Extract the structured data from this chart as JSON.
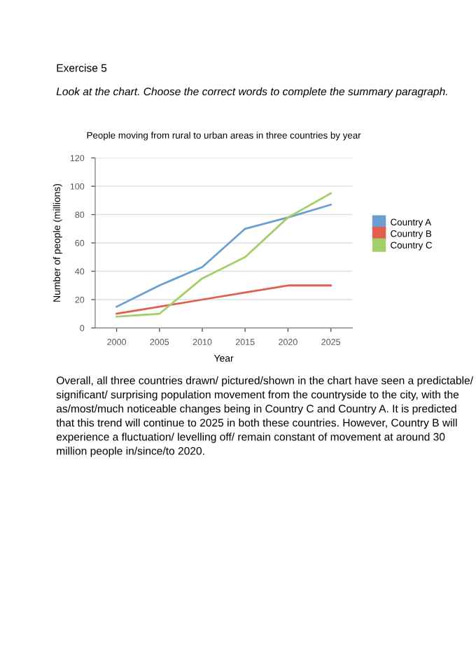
{
  "chart_data": {
    "type": "line",
    "title": "People moving from rural to urban areas in three countries by year",
    "xlabel": "Year",
    "ylabel": "Number of people (millions)",
    "x": [
      2000,
      2005,
      2010,
      2015,
      2020,
      2025
    ],
    "series": [
      {
        "name": "Country A",
        "color": "#6a9fd0",
        "values": [
          15,
          30,
          43,
          70,
          78,
          87
        ]
      },
      {
        "name": "Country B",
        "color": "#e0604f",
        "values": [
          10,
          15,
          20,
          25,
          30,
          30
        ]
      },
      {
        "name": "Country C",
        "color": "#a3cf6a",
        "values": [
          8,
          10,
          35,
          50,
          78,
          95
        ]
      }
    ],
    "xlim": [
      1997.5,
      2027.5
    ],
    "xticks": [
      2000,
      2005,
      2010,
      2015,
      2020,
      2025
    ],
    "ylim": [
      0,
      120
    ],
    "yticks": [
      0,
      20,
      40,
      60,
      80,
      100,
      120
    ],
    "grid": "y",
    "legend": "right",
    "marker": "none",
    "line_style": "solid",
    "annotations": [
      "Exercise 5",
      "Look at the chart. Choose the correct words to complete the summary paragraph.",
      "Overall, all three countries drawn/ pictured/shown in the chart have seen a predictable/ significant/ surprising population movement from the countryside to the city, with the as/most/much noticeable changes being in Country C and Country A. It is predicted that this trend will continue to 2025 in both these countries. However, Country B will experience a fluctuation/ levelling off/ remain constant of movement at around 30 million people in/since/to 2020."
    ]
  }
}
